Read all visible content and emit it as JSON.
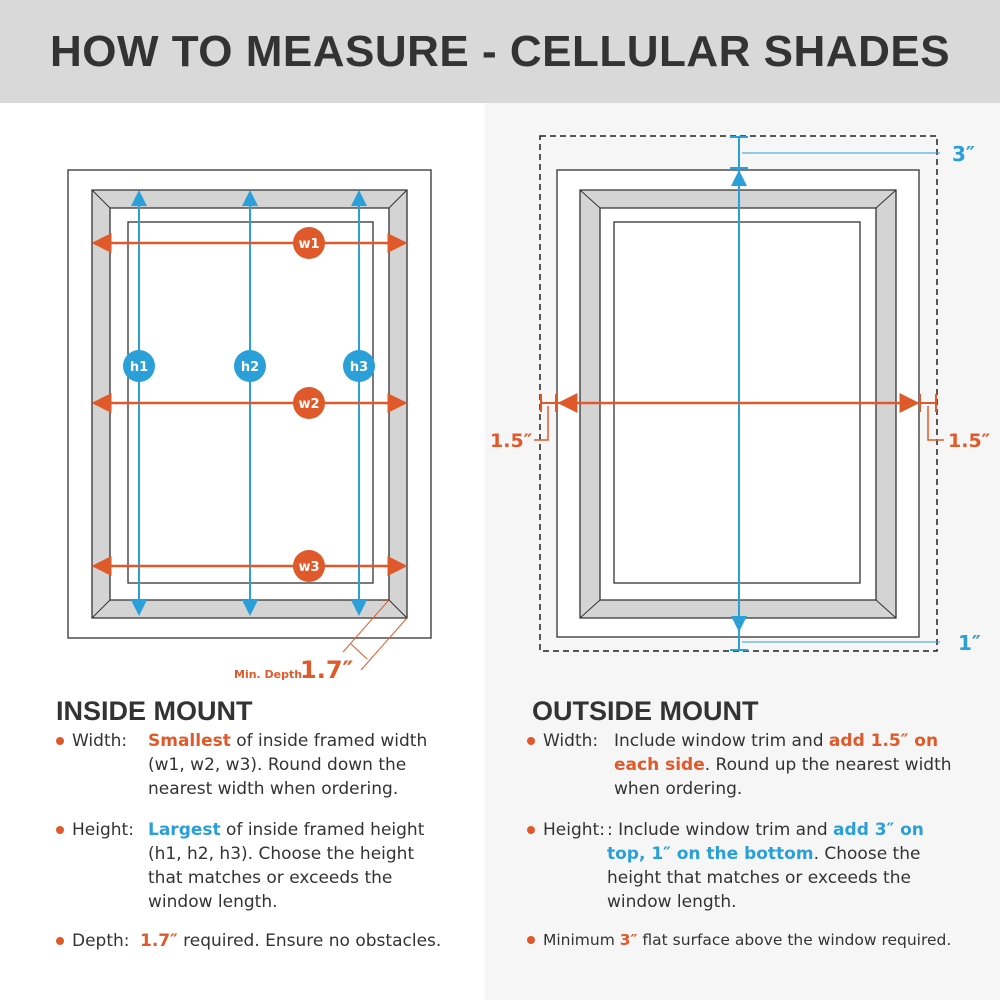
{
  "title": "HOW TO MEASURE - CELLULAR SHADES",
  "colors": {
    "accent_orange": "#e0592a",
    "accent_blue": "#2a9fd8",
    "header_bg": "#d9d9d9"
  },
  "inside_diagram": {
    "w_labels": [
      "w1",
      "w2",
      "w3"
    ],
    "h_labels": [
      "h1",
      "h2",
      "h3"
    ],
    "depth_prefix": "Min. Depth",
    "depth_value": "1.7″"
  },
  "outside_diagram": {
    "top": "3″",
    "left": "1.5″",
    "right": "1.5″",
    "bottom": "1″"
  },
  "inside": {
    "heading": "INSIDE MOUNT",
    "width": {
      "label": "Width:",
      "hl": "Smallest",
      "rest": " of inside framed width (w1, w2, w3). Round down the nearest width when ordering."
    },
    "height": {
      "label": "Height:",
      "hl": "Largest",
      "rest": " of inside framed height (h1, h2, h3). Choose the height that matches or exceeds the window length."
    },
    "depth": {
      "label": "Depth:",
      "hl": "1.7″",
      "rest": " required. Ensure no obstacles."
    }
  },
  "outside": {
    "heading": "OUTSIDE MOUNT",
    "width": {
      "label": "Width:",
      "pre": "Include window trim and ",
      "hl": "add 1.5″ on each side",
      "rest": ". Round up the nearest width when ordering."
    },
    "height": {
      "label": "Height:",
      "pre": ": Include window trim and ",
      "hl": "add 3″ on top, 1″ on the bottom",
      "rest": ". Choose the height that matches or exceeds the window length."
    },
    "minimum": {
      "pre": "Minimum ",
      "hl": "3″",
      "rest": " flat surface above the window required."
    }
  }
}
